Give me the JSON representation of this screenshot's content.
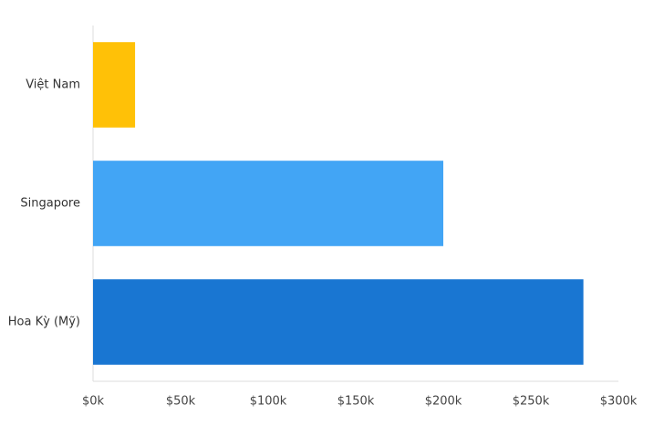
{
  "chart_data": {
    "type": "hbar",
    "categories": [
      "Việt Nam",
      "Singapore",
      "Hoa Kỳ (Mỹ)"
    ],
    "values": [
      24000,
      200000,
      280000
    ],
    "colors": [
      "#FFC107",
      "#42A5F5",
      "#1976D2"
    ],
    "xlim": [
      0,
      300000
    ],
    "xticks": [
      {
        "value": 0,
        "label": "$0k"
      },
      {
        "value": 50000,
        "label": "$50k"
      },
      {
        "value": 100000,
        "label": "$100k"
      },
      {
        "value": 150000,
        "label": "$150k"
      },
      {
        "value": 200000,
        "label": "$200k"
      },
      {
        "value": 250000,
        "label": "$250k"
      },
      {
        "value": 300000,
        "label": "$300k"
      }
    ],
    "grid": false
  }
}
